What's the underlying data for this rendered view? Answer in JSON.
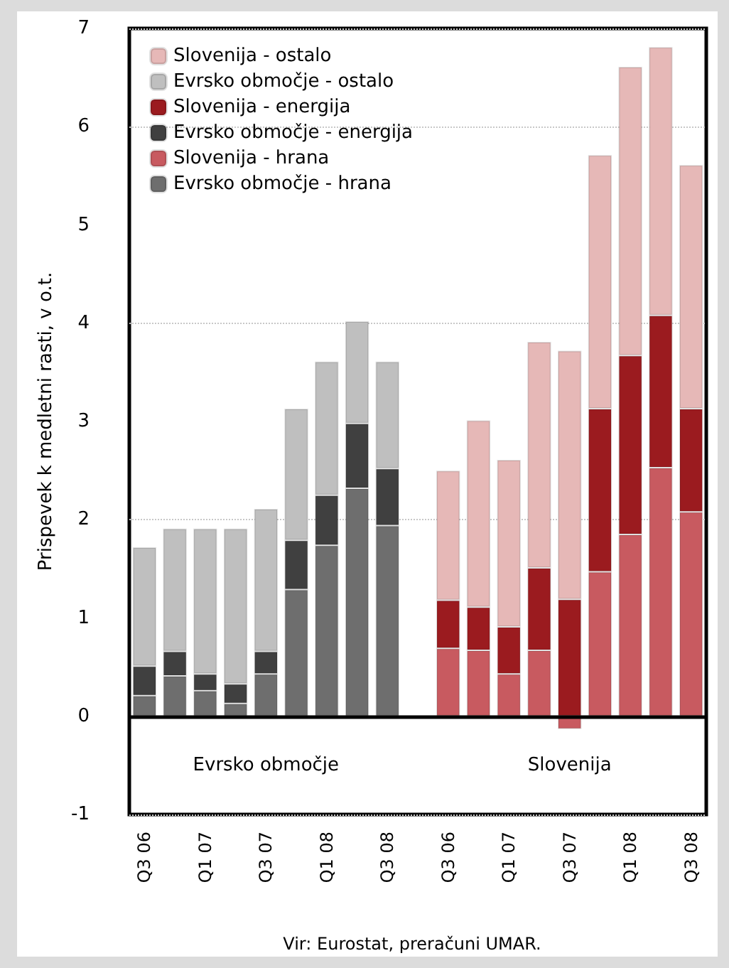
{
  "chart_data": {
    "type": "bar",
    "stacked": true,
    "ylabel": "Prispevek k medletni rasti, v o.t.",
    "categories": [
      "Q3 06",
      null,
      "Q1 07",
      null,
      "Q3 07",
      null,
      "Q1 08",
      null,
      "Q3 08",
      null,
      "Q3 06",
      null,
      "Q1 07",
      null,
      "Q3 07",
      null,
      "Q1 08",
      null,
      "Q3 08"
    ],
    "series": [
      {
        "name": "Evrsko območje - hrana",
        "color": "#6e6e6e",
        "values": [
          0.21,
          0.41,
          0.26,
          0.13,
          0.43,
          1.29,
          1.74,
          2.32,
          1.94,
          null,
          null,
          null,
          null,
          null,
          null,
          null,
          null,
          null,
          null
        ]
      },
      {
        "name": "Slovenija - hrana",
        "color": "#c85a60",
        "values": [
          null,
          null,
          null,
          null,
          null,
          null,
          null,
          null,
          null,
          null,
          0.69,
          0.67,
          0.43,
          0.67,
          -0.13,
          1.47,
          1.85,
          2.53,
          2.08
        ]
      },
      {
        "name": "Evrsko območje - energija",
        "color": "#404040",
        "values": [
          0.3,
          0.25,
          0.17,
          0.2,
          0.23,
          0.5,
          0.51,
          0.66,
          0.58,
          null,
          null,
          null,
          null,
          null,
          null,
          null,
          null,
          null,
          null
        ]
      },
      {
        "name": "Slovenija - energija",
        "color": "#9b1b1f",
        "values": [
          null,
          null,
          null,
          null,
          null,
          null,
          null,
          null,
          null,
          null,
          0.49,
          0.44,
          0.48,
          0.84,
          1.19,
          1.66,
          1.82,
          1.55,
          1.05
        ]
      },
      {
        "name": "Evrsko območje - ostalo",
        "color": "#bfbfbf",
        "values": [
          1.21,
          1.25,
          1.48,
          1.58,
          1.45,
          1.34,
          1.36,
          1.04,
          1.09,
          null,
          null,
          null,
          null,
          null,
          null,
          null,
          null,
          null,
          null
        ]
      },
      {
        "name": "Slovenija - ostalo",
        "color": "#e6b8b7",
        "values": [
          null,
          null,
          null,
          null,
          null,
          null,
          null,
          null,
          null,
          null,
          1.32,
          1.9,
          1.7,
          2.3,
          2.53,
          2.58,
          2.94,
          2.73,
          2.48
        ]
      }
    ],
    "ylim": [
      -1,
      7
    ],
    "yticks": [
      -1,
      0,
      1,
      2,
      3,
      4,
      5,
      6,
      7
    ],
    "grid": "y",
    "legend": "top left",
    "ref_lines": [
      {
        "axis": "y",
        "value": 0,
        "color": "#000000"
      }
    ],
    "annotations": [
      "Evrsko območje",
      "Slovenija",
      "Vir: Eurostat, preračuni UMAR."
    ]
  }
}
